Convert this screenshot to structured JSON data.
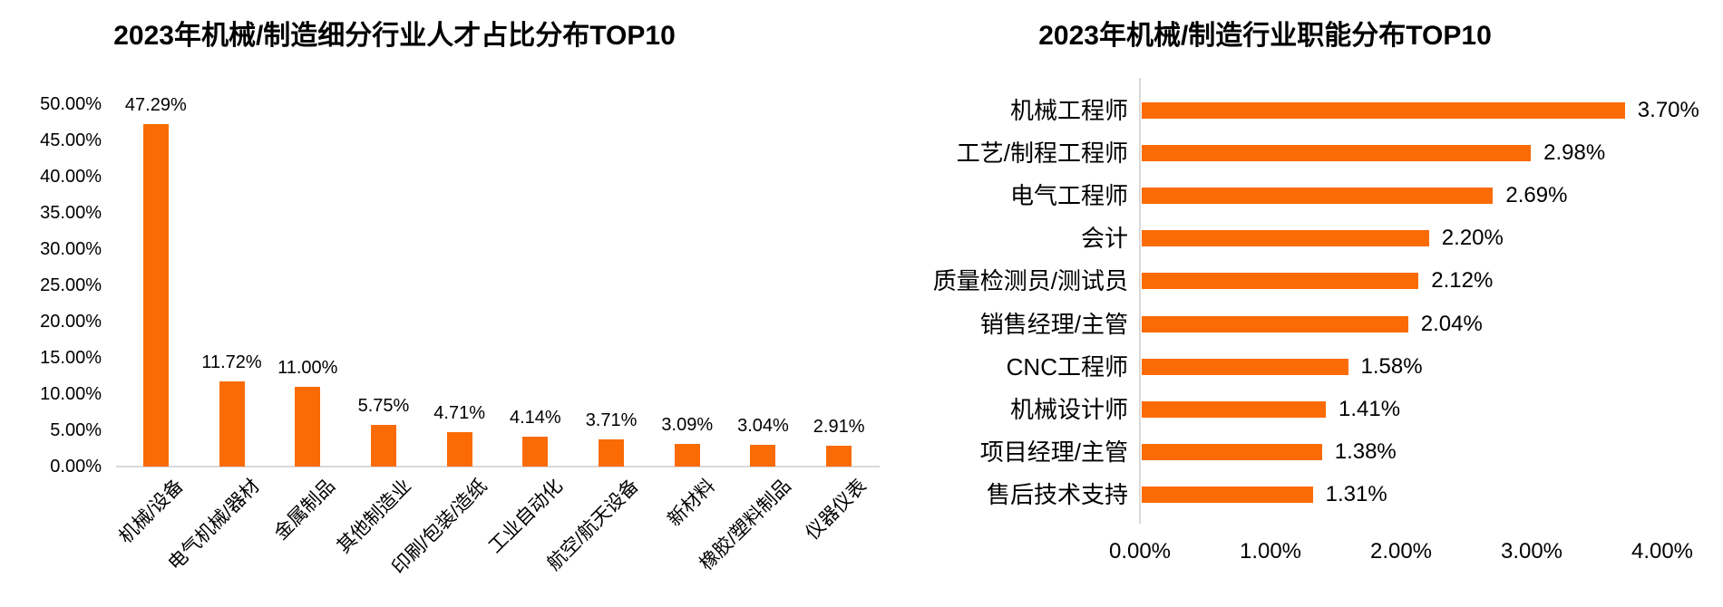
{
  "colors": {
    "bar": "#FA6B05",
    "axis": "#D9D9D9",
    "text": "#000000",
    "background": "#FFFFFF"
  },
  "chart_data": [
    {
      "type": "bar",
      "orientation": "vertical",
      "title": "2023年机械/制造细分行业人才占比分布TOP10",
      "categories": [
        "机械/设备",
        "电气机械/器材",
        "金属制品",
        "其他制造业",
        "印刷/包装/造纸",
        "工业自动化",
        "航空/航天设备",
        "新材料",
        "橡胶/塑料制品",
        "仪器仪表"
      ],
      "values": [
        47.29,
        11.72,
        11.0,
        5.75,
        4.71,
        4.14,
        3.71,
        3.09,
        3.04,
        2.91
      ],
      "value_labels": [
        "47.29%",
        "11.72%",
        "11.00%",
        "5.75%",
        "4.71%",
        "4.14%",
        "3.71%",
        "3.09%",
        "3.04%",
        "2.91%"
      ],
      "xlabel": "",
      "ylabel": "",
      "ylim": [
        0,
        50
      ],
      "y_tick_interval": 5,
      "y_tick_labels": [
        "50.00%",
        "45.00%",
        "40.00%",
        "35.00%",
        "30.00%",
        "25.00%",
        "20.00%",
        "15.00%",
        "10.00%",
        "5.00%",
        "0.00%"
      ],
      "data_labels_shown": true,
      "grid": false,
      "legend": false,
      "bar_color": "#FA6B05"
    },
    {
      "type": "bar",
      "orientation": "horizontal",
      "title": "2023年机械/制造行业职能分布TOP10",
      "categories": [
        "机械工程师",
        "工艺/制程工程师",
        "电气工程师",
        "会计",
        "质量检测员/测试员",
        "销售经理/主管",
        "CNC工程师",
        "机械设计师",
        "项目经理/主管",
        "售后技术支持"
      ],
      "values": [
        3.7,
        2.98,
        2.69,
        2.2,
        2.12,
        2.04,
        1.58,
        1.41,
        1.38,
        1.31
      ],
      "value_labels": [
        "3.70%",
        "2.98%",
        "2.69%",
        "2.20%",
        "2.12%",
        "2.04%",
        "1.58%",
        "1.41%",
        "1.38%",
        "1.31%"
      ],
      "xlabel": "",
      "ylabel": "",
      "xlim": [
        0,
        4
      ],
      "x_tick_interval": 1,
      "x_tick_labels": [
        "0.00%",
        "1.00%",
        "2.00%",
        "3.00%",
        "4.00%"
      ],
      "data_labels_shown": true,
      "grid": false,
      "legend": false,
      "bar_color": "#FA6B05"
    }
  ]
}
